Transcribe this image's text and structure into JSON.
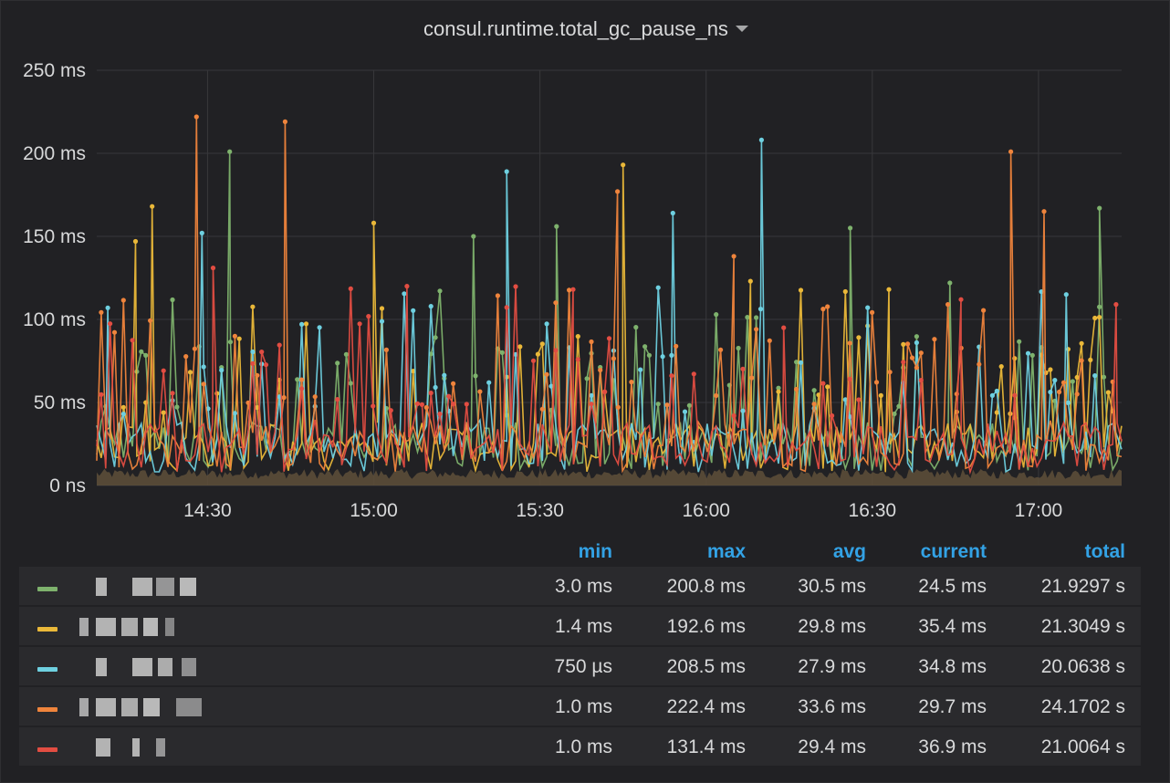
{
  "panel": {
    "title": "consul.runtime.total_gc_pause_ns"
  },
  "chart_data": {
    "type": "line",
    "title": "consul.runtime.total_gc_pause_ns",
    "ylim": [
      0,
      250
    ],
    "y_unit": "ms",
    "y_ticks": [
      "0 ns",
      "50 ms",
      "100 ms",
      "150 ms",
      "200 ms",
      "250 ms"
    ],
    "x_ticks": [
      "14:30",
      "15:00",
      "15:30",
      "16:00",
      "16:30",
      "17:00"
    ],
    "x_range": [
      "14:10",
      "17:15"
    ],
    "grid": true,
    "series": [
      {
        "color": "#7eb26d",
        "peaks": [
          [
            "14:34",
            201
          ],
          [
            "15:18",
            150
          ],
          [
            "15:33",
            156
          ],
          [
            "16:26",
            155
          ],
          [
            "16:44",
            122
          ],
          [
            "17:11",
            167
          ]
        ]
      },
      {
        "color": "#eab839",
        "peaks": [
          [
            "14:20",
            168
          ],
          [
            "14:17",
            147
          ],
          [
            "15:00",
            158
          ],
          [
            "15:45",
            193
          ],
          [
            "16:08",
            123
          ],
          [
            "16:33",
            118
          ]
        ]
      },
      {
        "color": "#6ed0e0",
        "peaks": [
          [
            "14:12",
            107
          ],
          [
            "14:29",
            152
          ],
          [
            "15:24",
            189
          ],
          [
            "15:54",
            164
          ],
          [
            "16:10",
            208
          ],
          [
            "17:05",
            115
          ]
        ]
      },
      {
        "color": "#ef843c",
        "peaks": [
          [
            "14:28",
            222
          ],
          [
            "14:44",
            219
          ],
          [
            "15:44",
            177
          ],
          [
            "16:05",
            138
          ],
          [
            "16:55",
            201
          ],
          [
            "17:01",
            165
          ]
        ]
      },
      {
        "color": "#e24d42",
        "peaks": [
          [
            "14:31",
            131
          ],
          [
            "15:06",
            120
          ],
          [
            "15:36",
            118
          ],
          [
            "16:14",
            95
          ],
          [
            "16:46",
            112
          ],
          [
            "17:14",
            109
          ]
        ]
      }
    ]
  },
  "legend": {
    "headers": {
      "min": "min",
      "max": "max",
      "avg": "avg",
      "current": "current",
      "total": "total"
    },
    "rows": [
      {
        "color": "#7eb26d",
        "min": "3.0 ms",
        "max": "200.8 ms",
        "avg": "30.5 ms",
        "current": "24.5 ms",
        "total": "21.9297 s"
      },
      {
        "color": "#eab839",
        "min": "1.4 ms",
        "max": "192.6 ms",
        "avg": "29.8 ms",
        "current": "35.4 ms",
        "total": "21.3049 s"
      },
      {
        "color": "#6ed0e0",
        "min": "750 µs",
        "max": "208.5 ms",
        "avg": "27.9 ms",
        "current": "34.8 ms",
        "total": "20.0638 s"
      },
      {
        "color": "#ef843c",
        "min": "1.0 ms",
        "max": "222.4 ms",
        "avg": "33.6 ms",
        "current": "29.7 ms",
        "total": "24.1702 s"
      },
      {
        "color": "#e24d42",
        "min": "1.0 ms",
        "max": "131.4 ms",
        "avg": "29.4 ms",
        "current": "36.9 ms",
        "total": "21.0064 s"
      }
    ]
  }
}
